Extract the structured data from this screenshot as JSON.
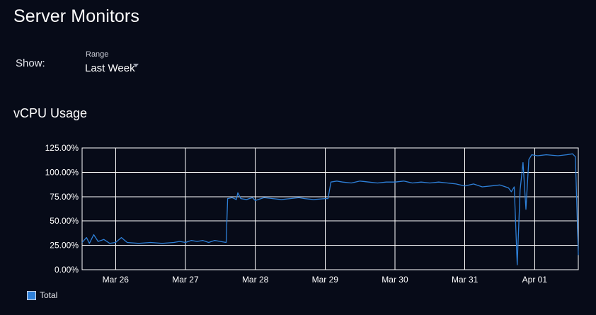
{
  "page": {
    "title": "Server Monitors"
  },
  "filters": {
    "show_label": "Show:",
    "range": {
      "label": "Range",
      "value": "Last Week"
    }
  },
  "colors": {
    "background": "#070b18",
    "series": "#2e80d8",
    "grid": "#ffffff"
  },
  "chart_data": {
    "type": "line",
    "title": "vCPU Usage",
    "xlabel": "",
    "ylabel": "",
    "x_ticks": [
      "Mar 26",
      "Mar 27",
      "Mar 28",
      "Mar 29",
      "Mar 30",
      "Mar 31",
      "Apr 01"
    ],
    "y_ticks": [
      "0.00%",
      "25.00%",
      "50.00%",
      "75.00%",
      "100.00%",
      "125.00%"
    ],
    "xlim": [
      "Mar 25 12:30",
      "Apr 01 15:00"
    ],
    "ylim": [
      0,
      125
    ],
    "grid": true,
    "legend_position": "bottom-left",
    "series": [
      {
        "name": "Total",
        "color": "#2e80d8",
        "points": [
          [
            "Mar 25 12:30",
            28
          ],
          [
            "Mar 25 14:00",
            33
          ],
          [
            "Mar 25 15:00",
            27
          ],
          [
            "Mar 25 16:30",
            36
          ],
          [
            "Mar 25 18:00",
            29
          ],
          [
            "Mar 25 20:00",
            31
          ],
          [
            "Mar 25 22:00",
            27
          ],
          [
            "Mar 26 00:00",
            28
          ],
          [
            "Mar 26 02:00",
            33
          ],
          [
            "Mar 26 04:00",
            28
          ],
          [
            "Mar 26 08:00",
            27
          ],
          [
            "Mar 26 12:00",
            28
          ],
          [
            "Mar 26 16:00",
            27
          ],
          [
            "Mar 26 20:00",
            28
          ],
          [
            "Mar 26 22:00",
            29
          ],
          [
            "Mar 27 00:00",
            28
          ],
          [
            "Mar 27 02:00",
            30
          ],
          [
            "Mar 27 04:00",
            29
          ],
          [
            "Mar 27 06:00",
            30
          ],
          [
            "Mar 27 08:00",
            28
          ],
          [
            "Mar 27 10:00",
            30
          ],
          [
            "Mar 27 12:00",
            29
          ],
          [
            "Mar 27 14:00",
            28
          ],
          [
            "Mar 27 14:30",
            73
          ],
          [
            "Mar 27 16:00",
            74
          ],
          [
            "Mar 27 17:30",
            72
          ],
          [
            "Mar 27 18:00",
            79
          ],
          [
            "Mar 27 19:00",
            73
          ],
          [
            "Mar 27 21:00",
            72
          ],
          [
            "Mar 27 23:00",
            74
          ],
          [
            "Mar 28 00:00",
            71
          ],
          [
            "Mar 28 03:00",
            74
          ],
          [
            "Mar 28 06:00",
            73
          ],
          [
            "Mar 28 09:00",
            72
          ],
          [
            "Mar 28 12:00",
            73
          ],
          [
            "Mar 28 15:00",
            74
          ],
          [
            "Mar 28 17:00",
            73
          ],
          [
            "Mar 28 20:00",
            72
          ],
          [
            "Mar 29 00:00",
            73
          ],
          [
            "Mar 29 01:00",
            73
          ],
          [
            "Mar 29 02:00",
            90
          ],
          [
            "Mar 29 04:00",
            91
          ],
          [
            "Mar 29 06:00",
            90
          ],
          [
            "Mar 29 09:00",
            89
          ],
          [
            "Mar 29 12:00",
            91
          ],
          [
            "Mar 29 15:00",
            90
          ],
          [
            "Mar 29 18:00",
            89
          ],
          [
            "Mar 29 21:00",
            90
          ],
          [
            "Mar 30 00:00",
            90
          ],
          [
            "Mar 30 03:00",
            91
          ],
          [
            "Mar 30 06:00",
            89
          ],
          [
            "Mar 30 09:00",
            90
          ],
          [
            "Mar 30 12:00",
            89
          ],
          [
            "Mar 30 15:00",
            90
          ],
          [
            "Mar 30 18:00",
            89
          ],
          [
            "Mar 30 21:00",
            88
          ],
          [
            "Mar 31 00:00",
            86
          ],
          [
            "Mar 31 03:00",
            88
          ],
          [
            "Mar 31 06:00",
            85
          ],
          [
            "Mar 31 09:00",
            86
          ],
          [
            "Mar 31 12:00",
            87
          ],
          [
            "Mar 31 15:00",
            84
          ],
          [
            "Mar 31 16:00",
            80
          ],
          [
            "Mar 31 17:00",
            85
          ],
          [
            "Mar 31 18:00",
            5
          ],
          [
            "Mar 31 19:00",
            82
          ],
          [
            "Mar 31 20:00",
            110
          ],
          [
            "Mar 31 21:00",
            62
          ],
          [
            "Mar 31 22:00",
            113
          ],
          [
            "Mar 31 23:00",
            118
          ],
          [
            "Apr 01 01:00",
            117
          ],
          [
            "Apr 01 04:00",
            118
          ],
          [
            "Apr 01 08:00",
            117
          ],
          [
            "Apr 01 11:00",
            118
          ],
          [
            "Apr 01 13:00",
            119
          ],
          [
            "Apr 01 14:00",
            116
          ],
          [
            "Apr 01 15:00",
            15
          ]
        ]
      }
    ]
  }
}
